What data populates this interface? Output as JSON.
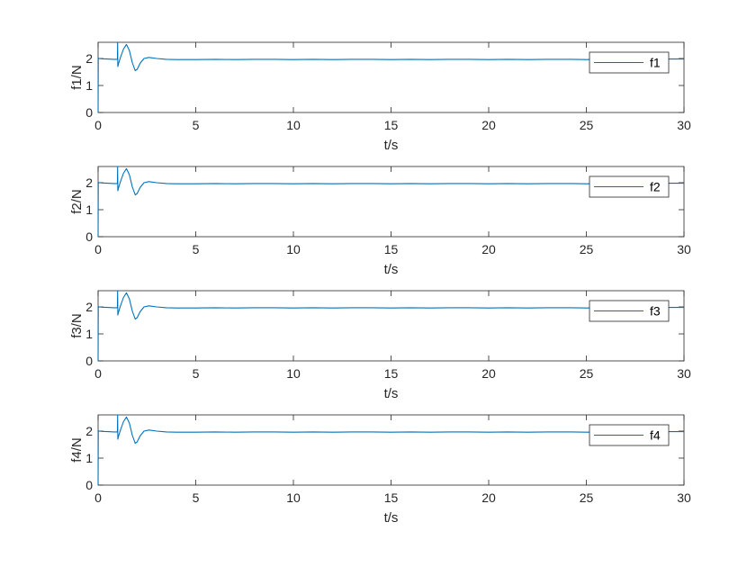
{
  "colors": {
    "series": "#0072BD",
    "axes": "#262626"
  },
  "chart_data": [
    {
      "type": "line",
      "xlabel": "t/s",
      "ylabel": "f1/N",
      "xlim": [
        0,
        30
      ],
      "ylim": [
        0,
        2.6
      ],
      "xticks": [
        "0",
        "5",
        "10",
        "15",
        "20",
        "25",
        "30"
      ],
      "yticks": [
        "0",
        "1",
        "2"
      ],
      "legend": "top-right",
      "grid": false,
      "series": [
        {
          "name": "f1",
          "x": [
            0,
            0.01,
            0.05,
            0.2,
            0.5,
            0.8,
            0.99,
            1.0,
            1.01,
            1.05,
            1.15,
            1.3,
            1.45,
            1.6,
            1.75,
            1.9,
            2.0,
            2.15,
            2.35,
            2.6,
            3.0,
            3.5,
            4.0,
            5,
            6,
            7,
            8,
            9,
            10,
            11,
            12,
            13,
            14,
            15,
            16,
            17,
            18,
            19,
            20,
            21,
            22,
            23,
            24,
            25,
            26,
            27,
            28,
            29,
            30
          ],
          "y": [
            0,
            2.02,
            2.0,
            1.99,
            1.98,
            1.97,
            1.97,
            2.6,
            1.7,
            1.82,
            2.05,
            2.35,
            2.52,
            2.3,
            1.85,
            1.55,
            1.6,
            1.82,
            2.0,
            2.04,
            2.0,
            1.97,
            1.96,
            1.96,
            1.97,
            1.96,
            1.97,
            1.97,
            1.96,
            1.97,
            1.96,
            1.97,
            1.97,
            1.96,
            1.97,
            1.96,
            1.97,
            1.97,
            1.96,
            1.97,
            1.96,
            1.97,
            1.97,
            1.96,
            1.97,
            1.97,
            1.96,
            1.98,
            1.98
          ]
        }
      ]
    },
    {
      "type": "line",
      "xlabel": "t/s",
      "ylabel": "f2/N",
      "xlim": [
        0,
        30
      ],
      "ylim": [
        0,
        2.6
      ],
      "xticks": [
        "0",
        "5",
        "10",
        "15",
        "20",
        "25",
        "30"
      ],
      "yticks": [
        "0",
        "1",
        "2"
      ],
      "legend": "top-right",
      "grid": false,
      "series": [
        {
          "name": "f2",
          "x": [
            0,
            0.01,
            0.05,
            0.2,
            0.5,
            0.8,
            0.99,
            1.0,
            1.01,
            1.05,
            1.15,
            1.3,
            1.45,
            1.6,
            1.75,
            1.9,
            2.0,
            2.15,
            2.35,
            2.6,
            3.0,
            3.5,
            4.0,
            5,
            6,
            7,
            8,
            9,
            10,
            11,
            12,
            13,
            14,
            15,
            16,
            17,
            18,
            19,
            20,
            21,
            22,
            23,
            24,
            25,
            26,
            27,
            28,
            29,
            30
          ],
          "y": [
            0,
            2.02,
            2.0,
            1.99,
            1.98,
            1.97,
            1.97,
            2.6,
            1.7,
            1.82,
            2.05,
            2.35,
            2.52,
            2.3,
            1.85,
            1.55,
            1.6,
            1.82,
            2.0,
            2.04,
            2.0,
            1.97,
            1.96,
            1.96,
            1.97,
            1.96,
            1.97,
            1.97,
            1.96,
            1.97,
            1.96,
            1.97,
            1.97,
            1.96,
            1.97,
            1.96,
            1.97,
            1.97,
            1.96,
            1.97,
            1.96,
            1.97,
            1.97,
            1.96,
            1.97,
            1.97,
            1.96,
            1.98,
            1.98
          ]
        }
      ]
    },
    {
      "type": "line",
      "xlabel": "t/s",
      "ylabel": "f3/N",
      "xlim": [
        0,
        30
      ],
      "ylim": [
        0,
        2.6
      ],
      "xticks": [
        "0",
        "5",
        "10",
        "15",
        "20",
        "25",
        "30"
      ],
      "yticks": [
        "0",
        "1",
        "2"
      ],
      "legend": "top-right",
      "grid": false,
      "series": [
        {
          "name": "f3",
          "x": [
            0,
            0.01,
            0.05,
            0.2,
            0.5,
            0.8,
            0.99,
            1.0,
            1.01,
            1.05,
            1.15,
            1.3,
            1.45,
            1.6,
            1.75,
            1.9,
            2.0,
            2.15,
            2.35,
            2.6,
            3.0,
            3.5,
            4.0,
            5,
            6,
            7,
            8,
            9,
            10,
            11,
            12,
            13,
            14,
            15,
            16,
            17,
            18,
            19,
            20,
            21,
            22,
            23,
            24,
            25,
            26,
            27,
            28,
            29,
            30
          ],
          "y": [
            0,
            2.02,
            2.0,
            1.99,
            1.98,
            1.97,
            1.97,
            2.6,
            1.7,
            1.82,
            2.05,
            2.35,
            2.52,
            2.3,
            1.85,
            1.55,
            1.6,
            1.82,
            2.0,
            2.04,
            2.0,
            1.97,
            1.96,
            1.96,
            1.97,
            1.96,
            1.97,
            1.97,
            1.96,
            1.97,
            1.96,
            1.97,
            1.97,
            1.96,
            1.97,
            1.96,
            1.97,
            1.97,
            1.96,
            1.97,
            1.96,
            1.97,
            1.97,
            1.96,
            1.97,
            1.97,
            1.96,
            1.98,
            1.98
          ]
        }
      ]
    },
    {
      "type": "line",
      "xlabel": "t/s",
      "ylabel": "f4/N",
      "xlim": [
        0,
        30
      ],
      "ylim": [
        0,
        2.6
      ],
      "xticks": [
        "0",
        "5",
        "10",
        "15",
        "20",
        "25",
        "30"
      ],
      "yticks": [
        "0",
        "1",
        "2"
      ],
      "legend": "top-right",
      "grid": false,
      "series": [
        {
          "name": "f4",
          "x": [
            0,
            0.01,
            0.05,
            0.2,
            0.5,
            0.8,
            0.99,
            1.0,
            1.01,
            1.05,
            1.15,
            1.3,
            1.45,
            1.6,
            1.75,
            1.9,
            2.0,
            2.15,
            2.35,
            2.6,
            3.0,
            3.5,
            4.0,
            5,
            6,
            7,
            8,
            9,
            10,
            11,
            12,
            13,
            14,
            15,
            16,
            17,
            18,
            19,
            20,
            21,
            22,
            23,
            24,
            25,
            26,
            27,
            28,
            29,
            30
          ],
          "y": [
            0,
            2.02,
            2.0,
            1.99,
            1.98,
            1.97,
            1.97,
            2.6,
            1.7,
            1.82,
            2.05,
            2.35,
            2.52,
            2.3,
            1.85,
            1.55,
            1.6,
            1.82,
            2.0,
            2.04,
            2.0,
            1.97,
            1.96,
            1.96,
            1.97,
            1.96,
            1.97,
            1.97,
            1.96,
            1.97,
            1.96,
            1.97,
            1.97,
            1.96,
            1.97,
            1.96,
            1.97,
            1.97,
            1.96,
            1.97,
            1.96,
            1.97,
            1.97,
            1.96,
            1.97,
            1.97,
            1.96,
            1.98,
            1.98
          ]
        }
      ]
    }
  ]
}
